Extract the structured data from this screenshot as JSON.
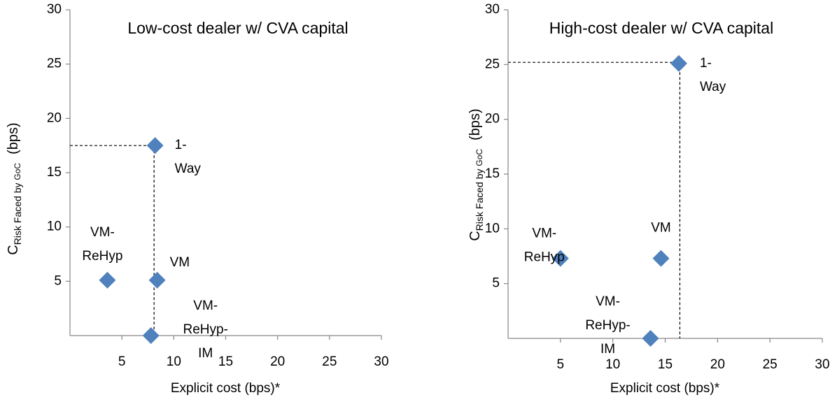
{
  "chart_data": [
    {
      "type": "scatter",
      "title": "Low-cost dealer w/ CVA capital",
      "x_label": "Explicit cost (bps)*",
      "y_label_parts": [
        "C",
        "Risk Faced by ",
        "GoC",
        "(bps)"
      ],
      "labels": [
        "1-Way",
        "VM",
        "VM-ReHyp",
        "VM-ReHyp-IM"
      ],
      "x": [
        8.2,
        8.4,
        3.6,
        7.8
      ],
      "values": [
        17.5,
        5.1,
        5.1,
        0
      ],
      "guide": {
        "x": 8.1,
        "y": 17.5
      },
      "color": "#4f81bd",
      "xlim": [
        0,
        30
      ],
      "xticks": [
        5,
        10,
        15,
        20,
        25,
        30
      ],
      "ylim": [
        0,
        30
      ],
      "yticks": [
        5,
        10,
        15,
        20,
        25,
        30
      ]
    },
    {
      "type": "scatter",
      "title": "High-cost dealer w/ CVA capital",
      "x_label": "Explicit cost (bps)*",
      "y_label_parts": [
        "C",
        "Risk Faced by ",
        "GoC",
        "(bps)"
      ],
      "labels": [
        "1-Way",
        "VM",
        "VM-ReHyp",
        "VM-ReHyp-IM"
      ],
      "x": [
        16.3,
        14.6,
        5.0,
        13.6
      ],
      "values": [
        25.1,
        7.3,
        7.3,
        0
      ],
      "guide": {
        "x": 16.4,
        "y": 25.2
      },
      "color": "#4f81bd",
      "xlim": [
        0,
        30
      ],
      "xticks": [
        5,
        10,
        15,
        20,
        25,
        30
      ],
      "ylim": [
        0,
        30
      ],
      "yticks": [
        5,
        10,
        15,
        20,
        25,
        30
      ]
    }
  ]
}
